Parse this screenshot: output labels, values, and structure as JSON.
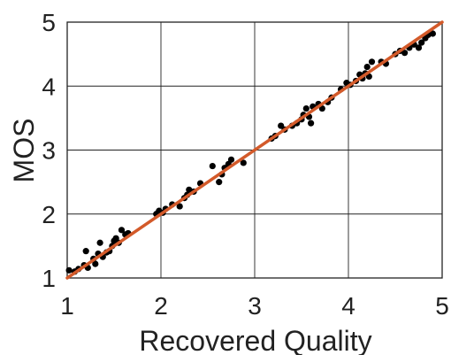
{
  "chart_data": {
    "type": "scatter",
    "title": "",
    "xlabel": "Recovered Quality",
    "ylabel": "MOS",
    "xlim": [
      1,
      5
    ],
    "ylim": [
      1,
      5
    ],
    "xticks": [
      1,
      2,
      3,
      4,
      5
    ],
    "yticks": [
      1,
      2,
      3,
      4,
      5
    ],
    "xtick_labels": [
      "1",
      "2",
      "3",
      "4",
      "5"
    ],
    "ytick_labels": [
      "1",
      "2",
      "3",
      "4",
      "5"
    ],
    "grid": true,
    "legend": "none",
    "colors": {
      "points": "#000000",
      "fit_line": "#d35a2a",
      "grid": "#222222"
    },
    "fit_line": {
      "x": [
        1,
        5
      ],
      "y": [
        1,
        5
      ]
    },
    "series": [
      {
        "points": [
          [
            1.02,
            1.12
          ],
          [
            1.08,
            1.1
          ],
          [
            1.12,
            1.14
          ],
          [
            1.18,
            1.2
          ],
          [
            1.2,
            1.42
          ],
          [
            1.22,
            1.16
          ],
          [
            1.28,
            1.3
          ],
          [
            1.3,
            1.22
          ],
          [
            1.33,
            1.38
          ],
          [
            1.35,
            1.55
          ],
          [
            1.38,
            1.33
          ],
          [
            1.42,
            1.4
          ],
          [
            1.45,
            1.42
          ],
          [
            1.48,
            1.5
          ],
          [
            1.5,
            1.58
          ],
          [
            1.52,
            1.62
          ],
          [
            1.55,
            1.55
          ],
          [
            1.58,
            1.75
          ],
          [
            1.62,
            1.68
          ],
          [
            1.65,
            1.7
          ],
          [
            1.95,
            2.0
          ],
          [
            1.98,
            2.05
          ],
          [
            2.02,
            2.02
          ],
          [
            2.05,
            2.08
          ],
          [
            2.12,
            2.15
          ],
          [
            2.2,
            2.12
          ],
          [
            2.25,
            2.25
          ],
          [
            2.28,
            2.3
          ],
          [
            2.3,
            2.38
          ],
          [
            2.35,
            2.35
          ],
          [
            2.42,
            2.48
          ],
          [
            2.55,
            2.75
          ],
          [
            2.62,
            2.5
          ],
          [
            2.65,
            2.62
          ],
          [
            2.68,
            2.72
          ],
          [
            2.72,
            2.78
          ],
          [
            2.75,
            2.85
          ],
          [
            2.88,
            2.8
          ],
          [
            3.18,
            3.18
          ],
          [
            3.22,
            3.22
          ],
          [
            3.28,
            3.38
          ],
          [
            3.32,
            3.32
          ],
          [
            3.4,
            3.38
          ],
          [
            3.45,
            3.42
          ],
          [
            3.5,
            3.48
          ],
          [
            3.52,
            3.55
          ],
          [
            3.55,
            3.65
          ],
          [
            3.58,
            3.52
          ],
          [
            3.6,
            3.42
          ],
          [
            3.62,
            3.68
          ],
          [
            3.68,
            3.72
          ],
          [
            3.72,
            3.65
          ],
          [
            3.78,
            3.75
          ],
          [
            3.82,
            3.82
          ],
          [
            3.92,
            3.95
          ],
          [
            3.98,
            4.05
          ],
          [
            4.02,
            4.02
          ],
          [
            4.08,
            4.08
          ],
          [
            4.12,
            4.18
          ],
          [
            4.15,
            4.12
          ],
          [
            4.18,
            4.2
          ],
          [
            4.2,
            4.3
          ],
          [
            4.22,
            4.15
          ],
          [
            4.25,
            4.38
          ],
          [
            4.35,
            4.38
          ],
          [
            4.4,
            4.35
          ],
          [
            4.5,
            4.5
          ],
          [
            4.55,
            4.55
          ],
          [
            4.6,
            4.52
          ],
          [
            4.65,
            4.6
          ],
          [
            4.7,
            4.65
          ],
          [
            4.75,
            4.6
          ],
          [
            4.78,
            4.68
          ],
          [
            4.82,
            4.75
          ],
          [
            4.85,
            4.8
          ],
          [
            4.9,
            4.82
          ]
        ]
      }
    ]
  }
}
